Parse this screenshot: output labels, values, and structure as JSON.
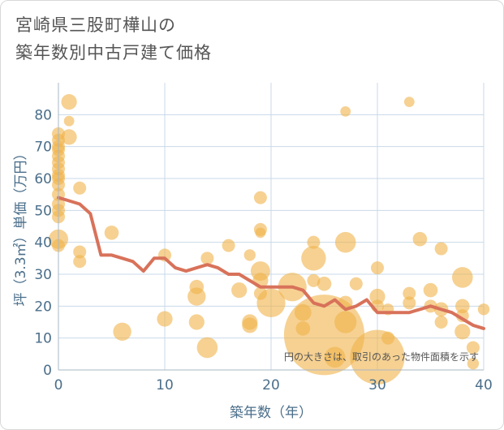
{
  "title": {
    "line1": "宮崎県三股町樺山の",
    "line2": "築年数別中古戸建て価格"
  },
  "chart_data": {
    "type": "scatter",
    "xlabel": "築年数（年）",
    "ylabel": "坪（3.3㎡）単価（万円）",
    "xlim": [
      0,
      40
    ],
    "ylim": [
      0,
      90
    ],
    "xticks": [
      0,
      10,
      20,
      30,
      40
    ],
    "yticks": [
      0,
      10,
      20,
      30,
      40,
      50,
      60,
      70,
      80
    ],
    "grid": true,
    "annotation": "円の大きさは、取引のあった物件面積を示す",
    "colors": {
      "bubble": "#f0b24a",
      "line": "#d8725a",
      "axis_text": "#4a6e8a",
      "grid": "#c9d9e8"
    },
    "series": [
      {
        "kind": "bubble",
        "points": [
          {
            "x": 0,
            "y": 74,
            "s": 1
          },
          {
            "x": 0,
            "y": 72,
            "s": 1
          },
          {
            "x": 0,
            "y": 70,
            "s": 1
          },
          {
            "x": 0,
            "y": 69,
            "s": 1
          },
          {
            "x": 0,
            "y": 67,
            "s": 1
          },
          {
            "x": 0,
            "y": 65,
            "s": 1
          },
          {
            "x": 0,
            "y": 63,
            "s": 1
          },
          {
            "x": 0,
            "y": 61,
            "s": 1
          },
          {
            "x": 0,
            "y": 60,
            "s": 1
          },
          {
            "x": 0,
            "y": 58,
            "s": 1
          },
          {
            "x": 0,
            "y": 55,
            "s": 1
          },
          {
            "x": 0,
            "y": 52,
            "s": 1
          },
          {
            "x": 0,
            "y": 50,
            "s": 1
          },
          {
            "x": 0,
            "y": 48,
            "s": 1
          },
          {
            "x": 0,
            "y": 41,
            "s": 1.5
          },
          {
            "x": 0,
            "y": 39,
            "s": 1
          },
          {
            "x": 1,
            "y": 84,
            "s": 1.2
          },
          {
            "x": 1,
            "y": 78,
            "s": 0.8
          },
          {
            "x": 1,
            "y": 73,
            "s": 1.2
          },
          {
            "x": 2,
            "y": 57,
            "s": 1
          },
          {
            "x": 2,
            "y": 37,
            "s": 1
          },
          {
            "x": 2,
            "y": 34,
            "s": 1
          },
          {
            "x": 5,
            "y": 43,
            "s": 1.1
          },
          {
            "x": 6,
            "y": 12,
            "s": 1.4
          },
          {
            "x": 10,
            "y": 36,
            "s": 1
          },
          {
            "x": 10,
            "y": 16,
            "s": 1.2
          },
          {
            "x": 13,
            "y": 26,
            "s": 1.1
          },
          {
            "x": 13,
            "y": 23,
            "s": 1.4
          },
          {
            "x": 13,
            "y": 15,
            "s": 1.2
          },
          {
            "x": 14,
            "y": 35,
            "s": 1
          },
          {
            "x": 14,
            "y": 7,
            "s": 1.6
          },
          {
            "x": 16,
            "y": 39,
            "s": 1
          },
          {
            "x": 17,
            "y": 25,
            "s": 1.2
          },
          {
            "x": 18,
            "y": 36,
            "s": 0.9
          },
          {
            "x": 18,
            "y": 15,
            "s": 1.2
          },
          {
            "x": 18,
            "y": 14,
            "s": 1.2
          },
          {
            "x": 19,
            "y": 54,
            "s": 1
          },
          {
            "x": 19,
            "y": 44,
            "s": 1
          },
          {
            "x": 19,
            "y": 43,
            "s": 0.8
          },
          {
            "x": 19,
            "y": 31,
            "s": 1.5
          },
          {
            "x": 19,
            "y": 28,
            "s": 1.2
          },
          {
            "x": 19,
            "y": 24,
            "s": 1
          },
          {
            "x": 20,
            "y": 21,
            "s": 2.2
          },
          {
            "x": 22,
            "y": 26,
            "s": 2.2
          },
          {
            "x": 23,
            "y": 18,
            "s": 1.3
          },
          {
            "x": 23,
            "y": 13,
            "s": 1.1
          },
          {
            "x": 24,
            "y": 40,
            "s": 1
          },
          {
            "x": 24,
            "y": 35,
            "s": 1.9
          },
          {
            "x": 24,
            "y": 28,
            "s": 1
          },
          {
            "x": 25,
            "y": 27,
            "s": 1.1
          },
          {
            "x": 25,
            "y": 11,
            "s": 6.2
          },
          {
            "x": 26,
            "y": 4,
            "s": 1.6
          },
          {
            "x": 27,
            "y": 81,
            "s": 0.8
          },
          {
            "x": 27,
            "y": 40,
            "s": 1.6
          },
          {
            "x": 27,
            "y": 21,
            "s": 1.1
          },
          {
            "x": 27,
            "y": 15,
            "s": 1.7
          },
          {
            "x": 28,
            "y": 27,
            "s": 1
          },
          {
            "x": 30,
            "y": 32,
            "s": 1
          },
          {
            "x": 30,
            "y": 23,
            "s": 1.2
          },
          {
            "x": 30,
            "y": 20,
            "s": 1
          },
          {
            "x": 30,
            "y": 4,
            "s": 4.2
          },
          {
            "x": 31,
            "y": 19,
            "s": 0.9
          },
          {
            "x": 31,
            "y": 10,
            "s": 1
          },
          {
            "x": 33,
            "y": 84,
            "s": 0.8
          },
          {
            "x": 33,
            "y": 24,
            "s": 1
          },
          {
            "x": 33,
            "y": 21,
            "s": 1
          },
          {
            "x": 34,
            "y": 41,
            "s": 1.1
          },
          {
            "x": 35,
            "y": 25,
            "s": 1.1
          },
          {
            "x": 35,
            "y": 20,
            "s": 1
          },
          {
            "x": 36,
            "y": 38,
            "s": 1
          },
          {
            "x": 36,
            "y": 19,
            "s": 1.1
          },
          {
            "x": 36,
            "y": 15,
            "s": 1
          },
          {
            "x": 38,
            "y": 29,
            "s": 1.6
          },
          {
            "x": 38,
            "y": 20,
            "s": 1.1
          },
          {
            "x": 38,
            "y": 17,
            "s": 1
          },
          {
            "x": 38,
            "y": 12,
            "s": 1.2
          },
          {
            "x": 39,
            "y": 7,
            "s": 1
          },
          {
            "x": 39,
            "y": 2,
            "s": 0.9
          },
          {
            "x": 40,
            "y": 19,
            "s": 0.9
          }
        ]
      },
      {
        "kind": "line",
        "x": [
          0,
          1,
          2,
          3,
          4,
          5,
          6,
          7,
          8,
          9,
          10,
          11,
          12,
          13,
          14,
          15,
          16,
          17,
          18,
          19,
          20,
          21,
          22,
          23,
          24,
          25,
          26,
          27,
          28,
          29,
          30,
          31,
          32,
          33,
          34,
          35,
          36,
          37,
          38,
          39,
          40
        ],
        "y": [
          54,
          53,
          52,
          49,
          36,
          36,
          35,
          34,
          31,
          35,
          35,
          32,
          31,
          32,
          33,
          32,
          30,
          30,
          28,
          26,
          26,
          26,
          26,
          25,
          21,
          20,
          22,
          19,
          20,
          22,
          18,
          18,
          18,
          18,
          19,
          20,
          19,
          18,
          16,
          14,
          13
        ]
      }
    ]
  }
}
